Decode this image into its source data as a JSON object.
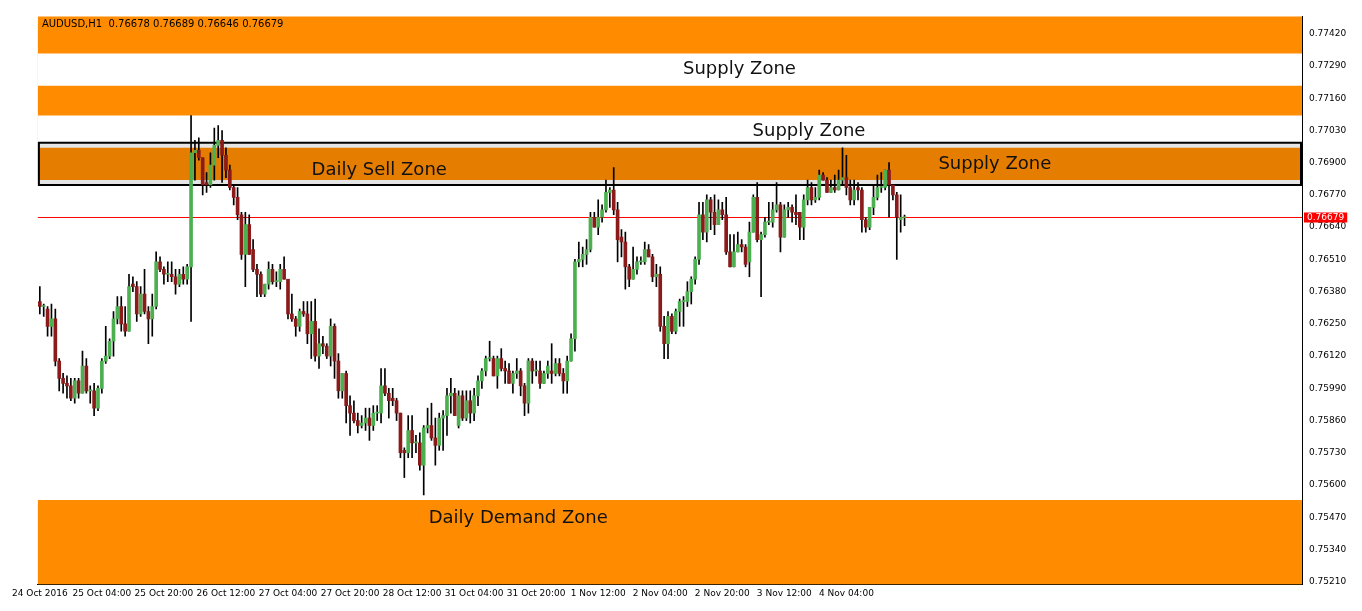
{
  "chart_data": {
    "type": "candlestick",
    "title": "AUDUSD,H1  0.76678 0.76689 0.76646 0.76679",
    "categories": [
      "24 Oct 2016",
      null,
      null,
      null,
      null,
      null,
      null,
      null,
      null,
      null,
      null,
      null,
      null,
      null,
      null,
      null,
      "25 Oct 04:00",
      null,
      null,
      null,
      null,
      null,
      null,
      null,
      null,
      null,
      null,
      null,
      null,
      null,
      null,
      null,
      "25 Oct 20:00",
      null,
      null,
      null,
      null,
      null,
      null,
      null,
      null,
      null,
      null,
      null,
      null,
      null,
      null,
      null,
      "26 Oct 12:00",
      null,
      null,
      null,
      null,
      null,
      null,
      null,
      null,
      null,
      null,
      null,
      null,
      null,
      null,
      null,
      "27 Oct 04:00",
      null,
      null,
      null,
      null,
      null,
      null,
      null,
      null,
      null,
      null,
      null,
      null,
      null,
      null,
      null,
      "27 Oct 20:00",
      null,
      null,
      null,
      null,
      null,
      null,
      null,
      null,
      null,
      null,
      null,
      null,
      null,
      null,
      null,
      "28 Oct 12:00",
      null,
      null,
      null,
      null,
      null,
      null,
      null,
      null,
      null,
      null,
      null,
      null,
      null,
      null,
      null,
      "31 Oct 04:00",
      null,
      null,
      null,
      null,
      null,
      null,
      null,
      null,
      null,
      null,
      null,
      null,
      null,
      null,
      null,
      "31 Oct 20:00",
      null,
      null,
      null,
      null,
      null,
      null,
      null,
      null,
      null,
      null,
      null,
      null,
      null,
      null,
      null,
      "1 Nov 12:00",
      null,
      null,
      null,
      null,
      null,
      null,
      null,
      null,
      null,
      null,
      null,
      null,
      null,
      null,
      null,
      "2 Nov 04:00",
      null,
      null,
      null,
      null,
      null,
      null,
      null,
      null,
      null,
      null,
      null,
      null,
      null,
      null,
      null,
      "2 Nov 20:00",
      null,
      null,
      null,
      null,
      null,
      null,
      null,
      null,
      null,
      null,
      null,
      null,
      null,
      null,
      null,
      "3 Nov 12:00",
      null,
      null,
      null,
      null,
      null,
      null,
      null,
      null,
      null,
      null,
      null,
      null,
      null,
      null,
      null,
      "4 Nov 04:00",
      null,
      null,
      null,
      null,
      null,
      null,
      null,
      null,
      null,
      null,
      null,
      null,
      null,
      null,
      null,
      null,
      null,
      null,
      null,
      null,
      null,
      null,
      null,
      null,
      null,
      null,
      null,
      null,
      null,
      null,
      null,
      null,
      null,
      null,
      null,
      null,
      null,
      null,
      null,
      null,
      null,
      null,
      null,
      null,
      null,
      null,
      null,
      null,
      null,
      null,
      null,
      null,
      null,
      null,
      null,
      null,
      null,
      null,
      null,
      null,
      null,
      null,
      null,
      null,
      null,
      null,
      null,
      null,
      null,
      null,
      null,
      null,
      null,
      null,
      null,
      null,
      null,
      null,
      null,
      null,
      null,
      null,
      null,
      null,
      null,
      null,
      null,
      null,
      null,
      null,
      null,
      null,
      null,
      null,
      null,
      null,
      null,
      null,
      null,
      null,
      null,
      null,
      null,
      null,
      null,
      null,
      null,
      null,
      null,
      null,
      null,
      null,
      null,
      null,
      null,
      null,
      null
    ],
    "ohlc": [
      [
        0.7634,
        0.764,
        0.7629,
        0.7632
      ],
      [
        0.7632,
        0.7633,
        0.7628,
        0.7632
      ],
      [
        0.7631,
        0.7632,
        0.762,
        0.7624
      ],
      [
        0.7624,
        0.7633,
        0.762,
        0.7627
      ],
      [
        0.7627,
        0.7631,
        0.7608,
        0.761
      ],
      [
        0.761,
        0.7611,
        0.7598,
        0.7603
      ],
      [
        0.7603,
        0.7605,
        0.7597,
        0.7601
      ],
      [
        0.7601,
        0.7604,
        0.7595,
        0.76
      ],
      [
        0.76,
        0.7603,
        0.7594,
        0.7595
      ],
      [
        0.7595,
        0.7603,
        0.7593,
        0.7602
      ],
      [
        0.7602,
        0.7603,
        0.7595,
        0.7597
      ],
      [
        0.7597,
        0.7614,
        0.7597,
        0.7608
      ],
      [
        0.7608,
        0.7611,
        0.7597,
        0.7598
      ],
      [
        0.7598,
        0.76,
        0.7593,
        0.7598
      ],
      [
        0.7598,
        0.7601,
        0.7588,
        0.7591
      ],
      [
        0.7591,
        0.76,
        0.759,
        0.7599
      ],
      [
        0.7599,
        0.7611,
        0.7597,
        0.761
      ],
      [
        0.761,
        0.7624,
        0.7609,
        0.7612
      ],
      [
        0.7612,
        0.7619,
        0.7611,
        0.7618
      ],
      [
        0.7618,
        0.763,
        0.7612,
        0.7627
      ],
      [
        0.7627,
        0.7636,
        0.7625,
        0.7632
      ],
      [
        0.7632,
        0.7636,
        0.7622,
        0.7625
      ],
      [
        0.7625,
        0.7632,
        0.762,
        0.7622
      ],
      [
        0.7622,
        0.7645,
        0.7622,
        0.764
      ],
      [
        0.7641,
        0.7644,
        0.7638,
        0.764
      ],
      [
        0.764,
        0.7642,
        0.7626,
        0.7629
      ],
      [
        0.7629,
        0.764,
        0.7628,
        0.7637
      ],
      [
        0.7637,
        0.7647,
        0.7629,
        0.763
      ],
      [
        0.763,
        0.7632,
        0.7617,
        0.7627
      ],
      [
        0.7627,
        0.7637,
        0.762,
        0.7632
      ],
      [
        0.7632,
        0.7654,
        0.7631,
        0.765
      ],
      [
        0.765,
        0.7652,
        0.7646,
        0.7647
      ],
      [
        0.7647,
        0.7648,
        0.7641,
        0.7645
      ],
      [
        0.7645,
        0.765,
        0.7642,
        0.7645
      ],
      [
        0.7645,
        0.765,
        0.7642,
        0.7644
      ],
      [
        0.7644,
        0.7647,
        0.7637,
        0.7641
      ],
      [
        0.7641,
        0.7647,
        0.764,
        0.7645
      ],
      [
        0.7645,
        0.7648,
        0.7641,
        0.7643
      ],
      [
        0.7643,
        0.7649,
        0.7641,
        0.7648
      ],
      [
        0.7648,
        0.7709,
        0.7626,
        0.7694
      ],
      [
        0.7694,
        0.7699,
        0.7683,
        0.7695
      ],
      [
        0.7695,
        0.77,
        0.7691,
        0.7692
      ],
      [
        0.7692,
        0.7692,
        0.7677,
        0.7681
      ],
      [
        0.7682,
        0.7686,
        0.7678,
        0.7681
      ],
      [
        0.7681,
        0.7694,
        0.768,
        0.7689
      ],
      [
        0.7689,
        0.7704,
        0.7683,
        0.7697
      ],
      [
        0.7697,
        0.7705,
        0.7692,
        0.7699
      ],
      [
        0.7699,
        0.7703,
        0.7682,
        0.7693
      ],
      [
        0.7693,
        0.7696,
        0.7684,
        0.7687
      ],
      [
        0.7687,
        0.7689,
        0.7679,
        0.768
      ],
      [
        0.768,
        0.7681,
        0.7673,
        0.7676
      ],
      [
        0.7676,
        0.768,
        0.7667,
        0.7669
      ],
      [
        0.7669,
        0.767,
        0.7651,
        0.7653
      ],
      [
        0.7653,
        0.767,
        0.764,
        0.7665
      ],
      [
        0.7665,
        0.7669,
        0.7653,
        0.7653
      ],
      [
        0.7655,
        0.7659,
        0.7646,
        0.7647
      ],
      [
        0.7647,
        0.7649,
        0.7636,
        0.7645
      ],
      [
        0.7645,
        0.7646,
        0.7636,
        0.7637
      ],
      [
        0.7637,
        0.7641,
        0.7636,
        0.7641
      ],
      [
        0.7641,
        0.765,
        0.7639,
        0.7647
      ],
      [
        0.7647,
        0.7649,
        0.7641,
        0.7642
      ],
      [
        0.7642,
        0.7646,
        0.764,
        0.7642
      ],
      [
        0.7642,
        0.7649,
        0.7639,
        0.7647
      ],
      [
        0.7647,
        0.7652,
        0.7643,
        0.7643
      ],
      [
        0.7643,
        0.7643,
        0.7627,
        0.7629
      ],
      [
        0.7629,
        0.7637,
        0.7626,
        0.7627
      ],
      [
        0.7627,
        0.7628,
        0.762,
        0.7624
      ],
      [
        0.7624,
        0.7631,
        0.7622,
        0.763
      ],
      [
        0.763,
        0.7634,
        0.7628,
        0.7629
      ],
      [
        0.7629,
        0.7634,
        0.7617,
        0.7621
      ],
      [
        0.7621,
        0.7634,
        0.7611,
        0.7626
      ],
      [
        0.7626,
        0.7635,
        0.761,
        0.7612
      ],
      [
        0.7612,
        0.7623,
        0.7607,
        0.7617
      ],
      [
        0.7617,
        0.762,
        0.7613,
        0.7616
      ],
      [
        0.7616,
        0.7617,
        0.7611,
        0.7612
      ],
      [
        0.7612,
        0.7627,
        0.7608,
        0.7624
      ],
      [
        0.7624,
        0.7625,
        0.7603,
        0.761
      ],
      [
        0.761,
        0.7613,
        0.7595,
        0.7598
      ],
      [
        0.7598,
        0.7605,
        0.7595,
        0.7605
      ],
      [
        0.7605,
        0.7606,
        0.7585,
        0.7592
      ],
      [
        0.7592,
        0.7596,
        0.758,
        0.7589
      ],
      [
        0.7589,
        0.7594,
        0.7585,
        0.7586
      ],
      [
        0.7586,
        0.7589,
        0.7581,
        0.7584
      ],
      [
        0.7584,
        0.7588,
        0.7583,
        0.7585
      ],
      [
        0.7585,
        0.7591,
        0.7582,
        0.7587
      ],
      [
        0.7587,
        0.7591,
        0.7578,
        0.7584
      ],
      [
        0.7584,
        0.7592,
        0.7582,
        0.7589
      ],
      [
        0.7589,
        0.7592,
        0.7586,
        0.7589
      ],
      [
        0.7589,
        0.7607,
        0.7585,
        0.76
      ],
      [
        0.76,
        0.7607,
        0.7596,
        0.7597
      ],
      [
        0.7597,
        0.7599,
        0.7587,
        0.7594
      ],
      [
        0.7595,
        0.7599,
        0.7592,
        0.7594
      ],
      [
        0.7594,
        0.7595,
        0.7586,
        0.7589
      ],
      [
        0.7589,
        0.7589,
        0.7571,
        0.7573
      ],
      [
        0.7574,
        0.7575,
        0.7563,
        0.7573
      ],
      [
        0.7573,
        0.7588,
        0.7571,
        0.7582
      ],
      [
        0.7582,
        0.7588,
        0.7571,
        0.7577
      ],
      [
        0.7577,
        0.758,
        0.7573,
        0.7577
      ],
      [
        0.7577,
        0.7581,
        0.7566,
        0.7568
      ],
      [
        0.7568,
        0.7584,
        0.7556,
        0.7583
      ],
      [
        0.7583,
        0.7591,
        0.7581,
        0.7584
      ],
      [
        0.7584,
        0.7593,
        0.7578,
        0.7579
      ],
      [
        0.7579,
        0.7587,
        0.7568,
        0.7576
      ],
      [
        0.7576,
        0.7589,
        0.7574,
        0.7587
      ],
      [
        0.7587,
        0.759,
        0.7574,
        0.7588
      ],
      [
        0.7588,
        0.7599,
        0.758,
        0.7596
      ],
      [
        0.7596,
        0.7603,
        0.7589,
        0.7597
      ],
      [
        0.7597,
        0.7599,
        0.7588,
        0.7588
      ],
      [
        0.7584,
        0.7598,
        0.7583,
        0.7596
      ],
      [
        0.7596,
        0.7598,
        0.7586,
        0.7587
      ],
      [
        0.7587,
        0.7598,
        0.7586,
        0.7594
      ],
      [
        0.7594,
        0.7598,
        0.7585,
        0.7589
      ],
      [
        0.7589,
        0.7599,
        0.7586,
        0.7596
      ],
      [
        0.7596,
        0.7604,
        0.7592,
        0.7602
      ],
      [
        0.7602,
        0.7607,
        0.7599,
        0.7606
      ],
      [
        0.7606,
        0.7612,
        0.7604,
        0.7611
      ],
      [
        0.7611,
        0.7618,
        0.761,
        0.7611
      ],
      [
        0.7611,
        0.7612,
        0.7604,
        0.7604
      ],
      [
        0.7604,
        0.7612,
        0.7599,
        0.7611
      ],
      [
        0.7611,
        0.7615,
        0.7606,
        0.7607
      ],
      [
        0.7607,
        0.761,
        0.7601,
        0.7606
      ],
      [
        0.7606,
        0.7609,
        0.7601,
        0.7601
      ],
      [
        0.7601,
        0.7606,
        0.7597,
        0.7605
      ],
      [
        0.7605,
        0.7611,
        0.7603,
        0.7606
      ],
      [
        0.7606,
        0.7607,
        0.7596,
        0.76
      ],
      [
        0.76,
        0.7601,
        0.7588,
        0.7593
      ],
      [
        0.7593,
        0.7611,
        0.7589,
        0.761
      ],
      [
        0.761,
        0.7611,
        0.7601,
        0.7606
      ],
      [
        0.7606,
        0.761,
        0.7604,
        0.7606
      ],
      [
        0.7606,
        0.761,
        0.7599,
        0.7601
      ],
      [
        0.7601,
        0.7606,
        0.7601,
        0.7605
      ],
      [
        0.7605,
        0.761,
        0.7603,
        0.7608
      ],
      [
        0.7606,
        0.7617,
        0.7601,
        0.7605
      ],
      [
        0.7605,
        0.7611,
        0.7604,
        0.7609
      ],
      [
        0.7609,
        0.7611,
        0.7604,
        0.7605
      ],
      [
        0.7605,
        0.7607,
        0.7597,
        0.7602
      ],
      [
        0.7602,
        0.7612,
        0.7597,
        0.761
      ],
      [
        0.761,
        0.7621,
        0.761,
        0.7619
      ],
      [
        0.7619,
        0.7651,
        0.7614,
        0.765
      ],
      [
        0.765,
        0.7658,
        0.7648,
        0.7651
      ],
      [
        0.7651,
        0.7656,
        0.7648,
        0.7653
      ],
      [
        0.7653,
        0.7659,
        0.7649,
        0.7655
      ],
      [
        0.7655,
        0.767,
        0.7654,
        0.7668
      ],
      [
        0.7668,
        0.767,
        0.7664,
        0.7664
      ],
      [
        0.7664,
        0.7675,
        0.7661,
        0.7668
      ],
      [
        0.7668,
        0.7673,
        0.7666,
        0.7671
      ],
      [
        0.7671,
        0.7683,
        0.767,
        0.7678
      ],
      [
        0.7678,
        0.768,
        0.7672,
        0.7679
      ],
      [
        0.7679,
        0.7688,
        0.7669,
        0.7671
      ],
      [
        0.7671,
        0.7674,
        0.765,
        0.7659
      ],
      [
        0.766,
        0.7663,
        0.7652,
        0.7658
      ],
      [
        0.7658,
        0.7662,
        0.7639,
        0.7648
      ],
      [
        0.7648,
        0.7649,
        0.764,
        0.7643
      ],
      [
        0.7643,
        0.7656,
        0.7643,
        0.7647
      ],
      [
        0.7647,
        0.7652,
        0.7645,
        0.765
      ],
      [
        0.765,
        0.7652,
        0.7649,
        0.765
      ],
      [
        0.765,
        0.7658,
        0.7649,
        0.7655
      ],
      [
        0.7655,
        0.7657,
        0.7652,
        0.7652
      ],
      [
        0.7652,
        0.7653,
        0.7642,
        0.7644
      ],
      [
        0.7644,
        0.7649,
        0.764,
        0.7645
      ],
      [
        0.7645,
        0.7648,
        0.7622,
        0.7624
      ],
      [
        0.7624,
        0.7628,
        0.7611,
        0.7617
      ],
      [
        0.7617,
        0.763,
        0.7611,
        0.7628
      ],
      [
        0.7628,
        0.7629,
        0.7621,
        0.7622
      ],
      [
        0.7622,
        0.7631,
        0.7621,
        0.763
      ],
      [
        0.763,
        0.7635,
        0.7624,
        0.7634
      ],
      [
        0.7634,
        0.7636,
        0.7624,
        0.7634
      ],
      [
        0.7634,
        0.7642,
        0.7632,
        0.7638
      ],
      [
        0.7638,
        0.7644,
        0.7633,
        0.7643
      ],
      [
        0.7643,
        0.7652,
        0.7641,
        0.7651
      ],
      [
        0.7651,
        0.7674,
        0.7649,
        0.7669
      ],
      [
        0.7669,
        0.7674,
        0.7659,
        0.7662
      ],
      [
        0.7662,
        0.7677,
        0.7658,
        0.7675
      ],
      [
        0.7675,
        0.7676,
        0.7663,
        0.767
      ],
      [
        0.767,
        0.7677,
        0.7661,
        0.7665
      ],
      [
        0.7665,
        0.7675,
        0.7665,
        0.7671
      ],
      [
        0.7671,
        0.7674,
        0.7667,
        0.7669
      ],
      [
        0.7669,
        0.7676,
        0.7653,
        0.7654
      ],
      [
        0.7654,
        0.7661,
        0.7648,
        0.7648
      ],
      [
        0.7648,
        0.7661,
        0.7648,
        0.7654
      ],
      [
        0.7654,
        0.7662,
        0.7654,
        0.7657
      ],
      [
        0.7657,
        0.7659,
        0.7654,
        0.7656
      ],
      [
        0.7656,
        0.7657,
        0.7648,
        0.7649
      ],
      [
        0.765,
        0.7666,
        0.7644,
        0.7662
      ],
      [
        0.7662,
        0.7677,
        0.7662,
        0.7676
      ],
      [
        0.7676,
        0.7682,
        0.7658,
        0.7659
      ],
      [
        0.7659,
        0.7662,
        0.7636,
        0.7661
      ],
      [
        0.7661,
        0.7668,
        0.766,
        0.7666
      ],
      [
        0.7666,
        0.7674,
        0.7665,
        0.7666
      ],
      [
        0.7666,
        0.7674,
        0.7664,
        0.7671
      ],
      [
        0.7671,
        0.7682,
        0.767,
        0.7673
      ],
      [
        0.7673,
        0.7674,
        0.7654,
        0.766
      ],
      [
        0.766,
        0.7673,
        0.766,
        0.7671
      ],
      [
        0.7671,
        0.7674,
        0.7668,
        0.7672
      ],
      [
        0.7672,
        0.7673,
        0.7666,
        0.767
      ],
      [
        0.767,
        0.7677,
        0.7665,
        0.7669
      ],
      [
        0.767,
        0.767,
        0.7659,
        0.7664
      ],
      [
        0.7664,
        0.7677,
        0.7659,
        0.7675
      ],
      [
        0.7675,
        0.7683,
        0.7673,
        0.768
      ],
      [
        0.768,
        0.7682,
        0.7673,
        0.7675
      ],
      [
        0.7675,
        0.768,
        0.7674,
        0.7676
      ],
      [
        0.7676,
        0.7687,
        0.7675,
        0.7685
      ],
      [
        0.7685,
        0.7686,
        0.7683,
        0.7683
      ],
      [
        0.7683,
        0.7684,
        0.7678,
        0.7678
      ],
      [
        0.7678,
        0.7683,
        0.7678,
        0.768
      ],
      [
        0.768,
        0.7685,
        0.7678,
        0.7679
      ],
      [
        0.7679,
        0.7687,
        0.7679,
        0.7683
      ],
      [
        0.7683,
        0.7696,
        0.7681,
        0.7684
      ],
      [
        0.7684,
        0.7693,
        0.7677,
        0.768
      ],
      [
        0.768,
        0.7683,
        0.7673,
        0.7675
      ],
      [
        0.7675,
        0.7683,
        0.7673,
        0.7679
      ],
      [
        0.768,
        0.7682,
        0.7675,
        0.7679
      ],
      [
        0.7679,
        0.768,
        0.7662,
        0.7667
      ],
      [
        0.7667,
        0.7668,
        0.7662,
        0.7664
      ],
      [
        0.7664,
        0.7672,
        0.7663,
        0.7672
      ],
      [
        0.7672,
        0.7681,
        0.7669,
        0.7676
      ],
      [
        0.7676,
        0.7685,
        0.7675,
        0.768
      ],
      [
        0.768,
        0.7686,
        0.7678,
        0.768
      ],
      [
        0.768,
        0.7687,
        0.7679,
        0.7687
      ],
      [
        0.7687,
        0.769,
        0.7668,
        0.7681
      ],
      [
        0.7681,
        0.7681,
        0.7675,
        0.7677
      ],
      [
        0.7677,
        0.7678,
        0.7651,
        0.7668
      ],
      [
        0.7667,
        0.7677,
        0.7662,
        0.7668
      ],
      [
        0.76678,
        0.76689,
        0.76646,
        0.76679
      ],
      null,
      null,
      null,
      null,
      null,
      null,
      null,
      null,
      null,
      null,
      null,
      null,
      null,
      null,
      null,
      null,
      null,
      null,
      null,
      null,
      null,
      null,
      null,
      null,
      null,
      null,
      null,
      null,
      null,
      null,
      null,
      null,
      null,
      null,
      null,
      null,
      null,
      null,
      null,
      null,
      null,
      null,
      null,
      null,
      null,
      null,
      null,
      null,
      null,
      null,
      null,
      null,
      null,
      null,
      null,
      null,
      null,
      null,
      null,
      null,
      null,
      null,
      null,
      null,
      null,
      null,
      null,
      null,
      null,
      null,
      null,
      null,
      null,
      null,
      null,
      null,
      null,
      null,
      null,
      null,
      null,
      null,
      null,
      null,
      null,
      null,
      null,
      null,
      null,
      null,
      null,
      null,
      null,
      null,
      null,
      null,
      null,
      null,
      null,
      null,
      null,
      null
    ],
    "ylim": [
      0.752,
      0.7749
    ],
    "yticks": [
      {
        "value": 0.7521,
        "label": "0.75210"
      },
      {
        "value": 0.7534,
        "label": "0.75340"
      },
      {
        "value": 0.7547,
        "label": "0.75470"
      },
      {
        "value": 0.756,
        "label": "0.75600"
      },
      {
        "value": 0.7573,
        "label": "0.75730"
      },
      {
        "value": 0.7586,
        "label": "0.75860"
      },
      {
        "value": 0.7599,
        "label": "0.75990"
      },
      {
        "value": 0.7612,
        "label": "0.76120"
      },
      {
        "value": 0.7625,
        "label": "0.76250"
      },
      {
        "value": 0.7638,
        "label": "0.76380"
      },
      {
        "value": 0.7651,
        "label": "0.76510"
      },
      {
        "value": 0.7664,
        "label": "0.76640"
      },
      {
        "value": 0.7677,
        "label": "0.76770"
      },
      {
        "value": 0.769,
        "label": "0.76900"
      },
      {
        "value": 0.7703,
        "label": "0.77030"
      },
      {
        "value": 0.7716,
        "label": "0.77160"
      },
      {
        "value": 0.7729,
        "label": "0.77290"
      },
      {
        "value": 0.7742,
        "label": "0.77420"
      }
    ],
    "bands": [
      {
        "axis": "y",
        "from": 0.7683,
        "to": 0.7749,
        "label": "Daily Sell Zone",
        "color": "#ff8c00"
      },
      {
        "axis": "y",
        "from": 0.7721,
        "to": 0.7734,
        "label": "Supply Zone",
        "color": "#ffffff"
      },
      {
        "axis": "y",
        "from": 0.7696,
        "to": 0.7709,
        "label": "Supply Zone",
        "color": "#ffffff"
      },
      {
        "axis": "y",
        "from": 0.7681,
        "to": 0.7698,
        "label": "Supply Zone",
        "color": "#000000"
      },
      {
        "axis": "y",
        "from": 0.752,
        "to": 0.7554,
        "label": "Daily Demand Zone",
        "color": "#ff8c00"
      }
    ],
    "ref_lines": [
      {
        "axis": "y",
        "value": 0.76679,
        "label": "0.76679",
        "color": "#ff0000"
      }
    ]
  }
}
